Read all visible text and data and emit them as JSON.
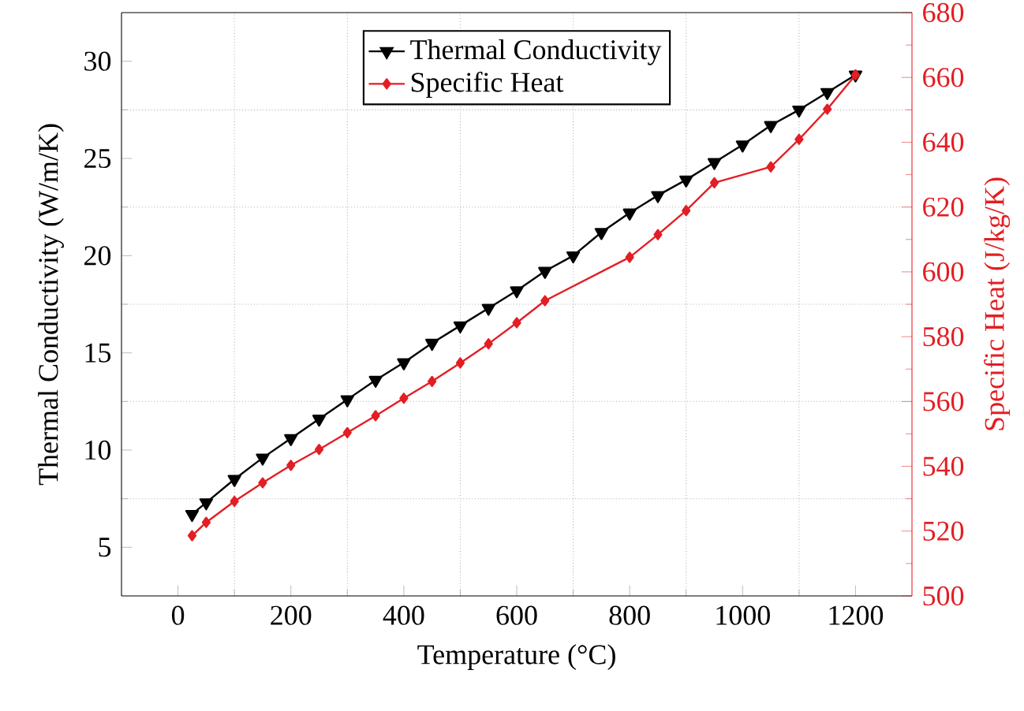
{
  "chart_data": {
    "type": "line",
    "xlabel": "Temperature (°C)",
    "ylabel": "Thermal Conductivity (W/m/K)",
    "y2label": "Specific Heat (J/kg/K)",
    "series": [
      {
        "name": "Thermal Conductivity",
        "color": "#000000",
        "marker": "triangle",
        "x": [
          25,
          50,
          100,
          150,
          200,
          250,
          300,
          350,
          400,
          450,
          500,
          550,
          600,
          650,
          700,
          750,
          800,
          850,
          900,
          950,
          1000,
          1050,
          1100,
          1150,
          1200
        ],
        "values": [
          6.7,
          7.3,
          8.5,
          9.6,
          10.6,
          11.6,
          12.6,
          13.6,
          14.5,
          15.5,
          16.4,
          17.3,
          18.2,
          19.2,
          20.0,
          21.2,
          22.2,
          23.1,
          23.9,
          24.8,
          25.7,
          26.7,
          27.5,
          28.4,
          29.3
        ]
      },
      {
        "name": "Specific Heat",
        "color": "#e31e24",
        "marker": "diamond",
        "axis": "y2",
        "x": [
          25,
          50,
          100,
          150,
          200,
          250,
          300,
          350,
          400,
          450,
          500,
          550,
          600,
          650,
          800,
          850,
          900,
          950,
          1050,
          1100,
          1150,
          1200
        ],
        "values": [
          518.6,
          522.7,
          529.2,
          534.9,
          540.3,
          545.2,
          550.4,
          555.6,
          561.0,
          566.2,
          571.9,
          577.8,
          584.3,
          591.1,
          604.5,
          611.5,
          618.9,
          627.5,
          632.4,
          640.9,
          650.2,
          660.8
        ]
      }
    ],
    "xlim": [
      -100,
      1300
    ],
    "xticks": [
      0,
      200,
      400,
      600,
      800,
      1000,
      1200
    ],
    "ylim": [
      2.5,
      32.5
    ],
    "yticks": [
      5,
      10,
      15,
      20,
      25,
      30
    ],
    "y2lim": [
      500,
      680
    ],
    "y2ticks": [
      500,
      520,
      540,
      560,
      580,
      600,
      620,
      640,
      660,
      680
    ],
    "grid": true,
    "legend": "top",
    "line_style": "solid"
  }
}
